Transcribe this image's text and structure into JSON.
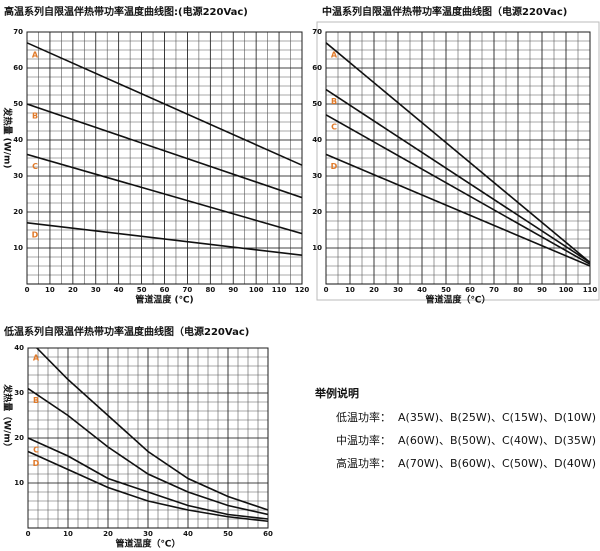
{
  "chart_data": [
    {
      "type": "line",
      "title": "高温系列自限温伴热带功率温度曲线图:(电源220Vac)",
      "xlabel": "管道温度 (℃)",
      "ylabel": "发热量 (W/m)",
      "x": [
        0,
        120
      ],
      "series": [
        {
          "name": "A",
          "color": "#111111",
          "values": [
            67,
            33
          ]
        },
        {
          "name": "B",
          "color": "#111111",
          "values": [
            50,
            24
          ]
        },
        {
          "name": "C",
          "color": "#111111",
          "values": [
            36,
            14
          ]
        },
        {
          "name": "D",
          "color": "#111111",
          "values": [
            17,
            8
          ]
        }
      ],
      "label_color": "#e07a2a",
      "xlim": [
        0,
        120
      ],
      "ylim": [
        0,
        70
      ],
      "xticks": [
        0,
        10,
        20,
        30,
        40,
        50,
        60,
        70,
        80,
        90,
        100,
        110,
        120
      ],
      "yticks": [
        10,
        20,
        30,
        40,
        50,
        60,
        70
      ],
      "grid": true,
      "minor_grid": {
        "x": 5,
        "y": 2.5
      }
    },
    {
      "type": "line",
      "title": "中温系列自限温伴热带功率温度曲线图（电源220Vac)",
      "xlabel": "管道温度（℃）",
      "x": [
        0,
        110
      ],
      "series": [
        {
          "name": "A",
          "color": "#111111",
          "values": [
            67,
            6
          ]
        },
        {
          "name": "B",
          "color": "#111111",
          "values": [
            54,
            6
          ]
        },
        {
          "name": "C",
          "color": "#111111",
          "values": [
            47,
            5.5
          ]
        },
        {
          "name": "D",
          "color": "#111111",
          "values": [
            36,
            5
          ]
        }
      ],
      "label_color": "#e07a2a",
      "xlim": [
        0,
        110
      ],
      "ylim": [
        0,
        70
      ],
      "xticks": [
        0,
        10,
        20,
        30,
        40,
        50,
        60,
        70,
        80,
        90,
        100,
        110
      ],
      "yticks": [
        10,
        20,
        30,
        40,
        50,
        60,
        70
      ],
      "grid": true,
      "minor_grid": {
        "x": 5,
        "y": 2.5
      }
    },
    {
      "type": "line",
      "title": "低温系列自限温伴热带功率温度曲线图（电源220Vac)",
      "xlabel": "管道温度（℃）",
      "ylabel": "发热量（W/m）",
      "x": [
        0,
        10,
        20,
        30,
        40,
        50,
        60
      ],
      "series": [
        {
          "name": "A",
          "color": "#111111",
          "values": [
            42,
            33,
            25,
            17,
            11,
            7,
            4
          ]
        },
        {
          "name": "B",
          "color": "#111111",
          "values": [
            31,
            25,
            18,
            12,
            8,
            5,
            3
          ]
        },
        {
          "name": "C",
          "color": "#111111",
          "values": [
            20,
            16,
            11,
            8,
            5,
            3,
            2
          ]
        },
        {
          "name": "D",
          "color": "#111111",
          "values": [
            17,
            13,
            9,
            6,
            4,
            2.5,
            1.5
          ]
        }
      ],
      "label_color": "#e07a2a",
      "xlim": [
        0,
        60
      ],
      "ylim": [
        0,
        40
      ],
      "xticks": [
        0,
        10,
        20,
        30,
        40,
        50,
        60
      ],
      "yticks": [
        10,
        20,
        30,
        40
      ],
      "grid": true,
      "minor_grid": {
        "x": 2.5,
        "y": 2
      }
    }
  ],
  "legend_note": {
    "title": "举例说明",
    "rows": [
      {
        "label": "低温功率：",
        "text": "A(35W)、B(25W)、C(15W)、D(10W)"
      },
      {
        "label": "中温功率：",
        "text": "A(60W)、B(50W)、C(40W)、D(35W)"
      },
      {
        "label": "高温功率：",
        "text": "A(70W)、B(60W)、C(50W)、D(40W)"
      }
    ]
  }
}
